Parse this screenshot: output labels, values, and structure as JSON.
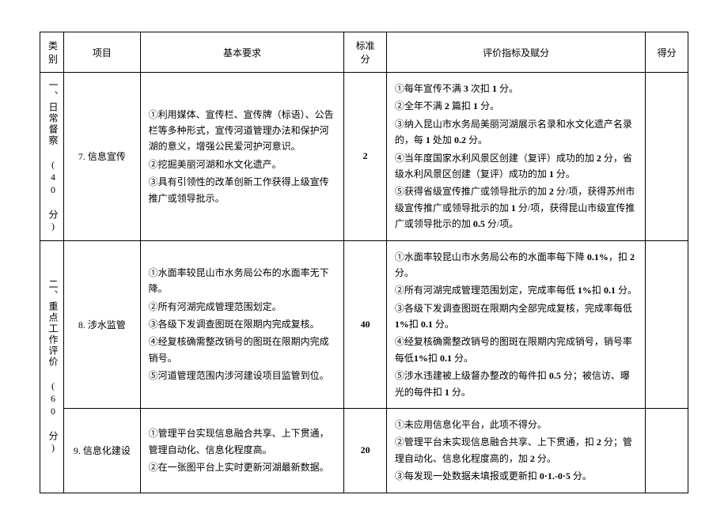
{
  "headers": {
    "category": "类别",
    "project": "项目",
    "requirement": "基本要求",
    "std_score": "标准分",
    "criteria": "评价指标及赋分",
    "got_score": "得分"
  },
  "cat1": {
    "label": "一、日常督察 (40 分)"
  },
  "cat2": {
    "label": "二、重点工作评价 (60 分)"
  },
  "r7": {
    "project": "7. 信息宣传",
    "req1": "①利用媒体、宣传栏、宣传牌（标语）、公告栏等多种形式，宣传河道管理办法和保护河湖的意义，增强公民爱河护河意识。",
    "req2": "②挖掘美丽河湖和水文化遗产。",
    "req3": "③具有引领性的改革创新工作获得上级宣传推广或领导批示。",
    "score": "2",
    "c1a": "①每年宣传不满 ",
    "c1b": "3",
    "c1c": " 次扣 ",
    "c1d": "1",
    "c1e": " 分。",
    "c2a": "②全年不满 ",
    "c2b": "2",
    "c2c": " 篇扣 ",
    "c2d": "1",
    "c2e": " 分。",
    "c3a": "③纳入昆山市水务局美丽河湖展示名录和水文化遗产名录的，每 ",
    "c3b": "1",
    "c3c": " 处加 ",
    "c3d": "0.2",
    "c3e": " 分。",
    "c4a": "④当年度国家水利风景区创建（复评）成功的加 ",
    "c4b": "2",
    "c4c": " 分，省级水利风景区创建（复评）成功的加 ",
    "c4d": "1",
    "c4e": " 分。",
    "c5a": "⑤获得省级宣传推广或领导批示的加 ",
    "c5b": "2",
    "c5c": " 分/项，获得苏州市级宣传推广或领导批示的加 ",
    "c5d": "1",
    "c5e": " 分/项，获得昆山市级宣传推广或领导批示的加 ",
    "c5f": "0.5",
    "c5g": " 分/项。"
  },
  "r8": {
    "project": "8. 涉水监管",
    "req1": "①水面率较昆山市水务局公布的水面率无下降。",
    "req2": "②所有河湖完成管理范围划定。",
    "req3": "③各级下发调查图斑在限期内完成复核。",
    "req4": "④经复核确需整改销号的图斑在限期内完成销号。",
    "req5": "⑤河道管理范围内涉河建设项目监管到位。",
    "score": "40",
    "c1a": "①水面率较昆山市水务局公布的水面率每下降 ",
    "c1b": "0.1%",
    "c1c": "，扣 ",
    "c1d": "2",
    "c1e": " 分。",
    "c2a": "②所有河湖完成管理范围划定，完成率每低 ",
    "c2b": "1%",
    "c2c": "扣 ",
    "c2d": "0.1",
    "c2e": " 分。",
    "c3a": "③各级下发调查图斑在限期内全部完成复核，完成率每低 ",
    "c3b": "1%",
    "c3c": "扣 ",
    "c3d": "0.1",
    "c3e": " 分。",
    "c4a": "④经复核确需整改销号的图斑在限期内完成销号，销号率每低",
    "c4b": "1%",
    "c4c": "扣 ",
    "c4d": "0.1",
    "c4e": " 分。",
    "c5a": "⑤涉水违建被上级督办整改的每件扣 ",
    "c5b": "0.5",
    "c5c": " 分；被信访、曝光的每件扣 ",
    "c5d": "1",
    "c5e": " 分。"
  },
  "r9": {
    "project": "9. 信息化建设",
    "req1": "①管理平台实现信息融合共享、上下贯通，管理自动化、信息化程度高。",
    "req2": "②在一张图平台上实时更新河湖最新数据。",
    "score": "20",
    "c1": "①未应用信息化平台，此项不得分。",
    "c2a": "②管理平台未实现信息融合共享、上下贯通，扣 ",
    "c2b": "2",
    "c2c": " 分；管理自动化、信息化程度高的，加 ",
    "c2d": "2",
    "c2e": " 分。",
    "c3a": "③每发现一处数据未填报或更新扣 ",
    "c3b": "0·1.-0·5",
    "c3c": " 分。"
  }
}
